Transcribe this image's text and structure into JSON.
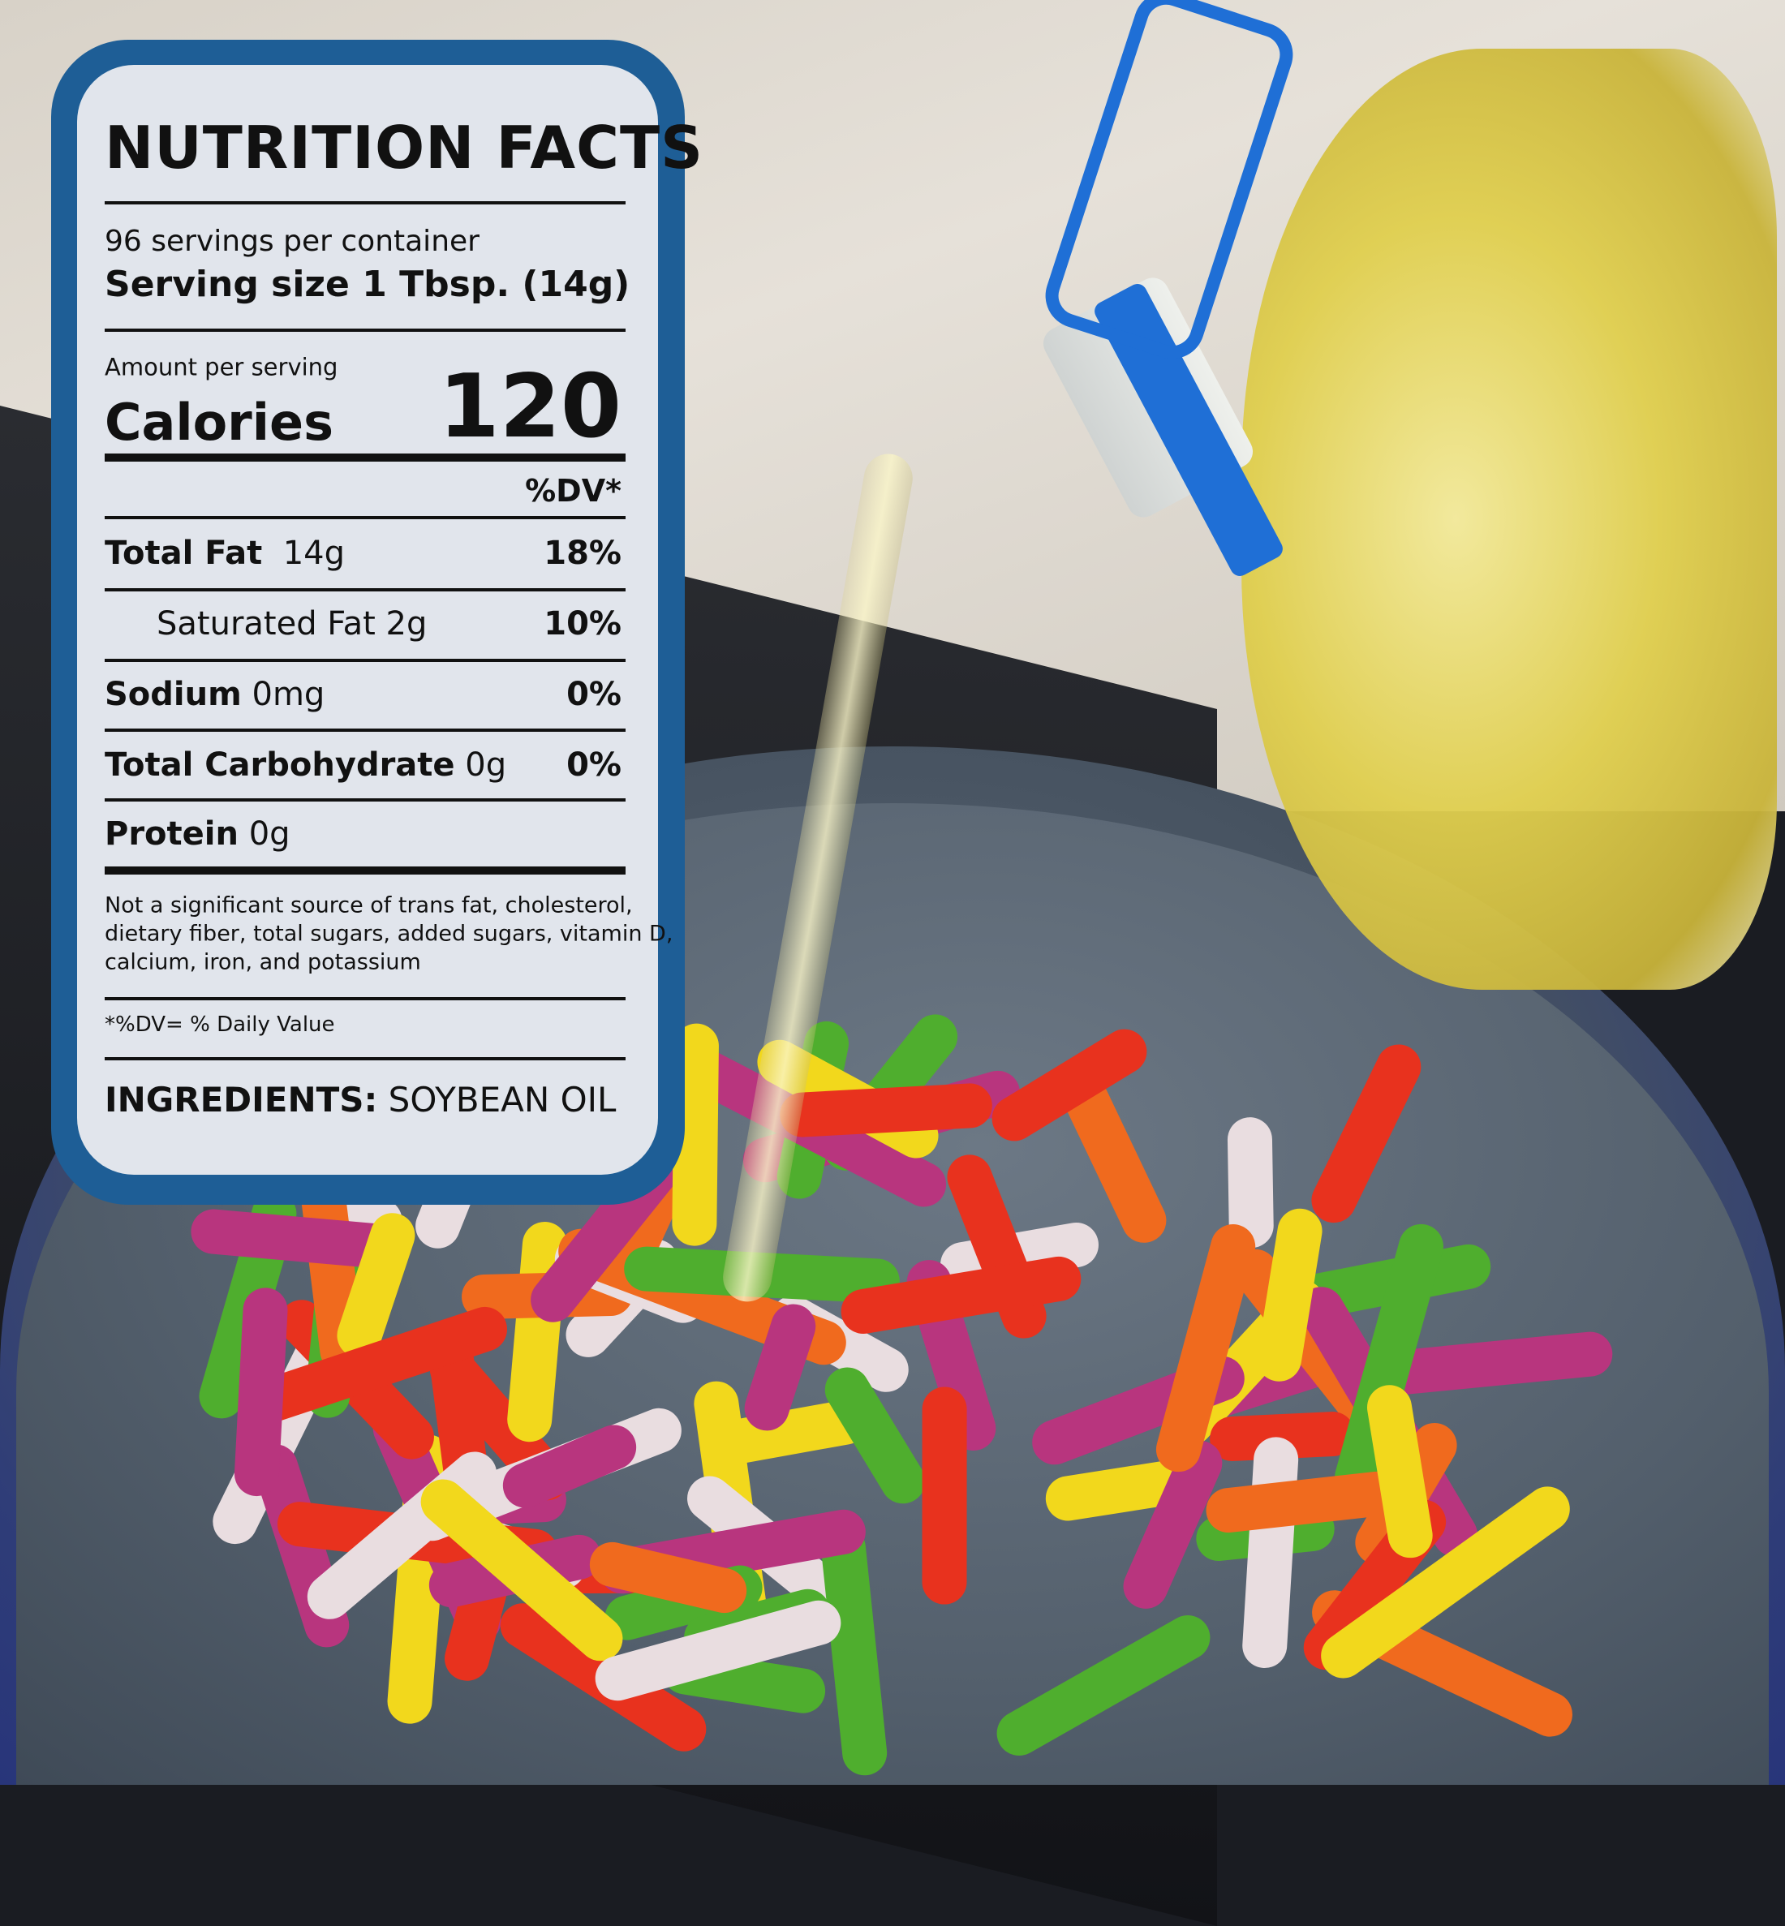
{
  "label": {
    "title": "NUTRITION FACTS",
    "servings_per_container": "96 servings per container",
    "serving_size_label": "Serving size",
    "serving_size_value": "1 Tbsp. (14g)",
    "amount_per_serving": "Amount per serving",
    "calories_label": "Calories",
    "calories_value": "120",
    "dv_header": "%DV*",
    "nutrients": [
      {
        "name": "Total Fat",
        "amount": "14g",
        "dv": "18%"
      },
      {
        "name": "Saturated Fat",
        "amount": "2g",
        "dv": "10%"
      },
      {
        "name": "Sodium",
        "amount": "0mg",
        "dv": "0%"
      },
      {
        "name": "Total Carbohydrate",
        "amount": "0g",
        "dv": "0%"
      },
      {
        "name": "Protein",
        "amount": "0g",
        "dv": ""
      }
    ],
    "footnote_lines": [
      "Not a significant source of trans fat, cholesterol,",
      "dietary fiber, total sugars, added sugars, vitamin D,",
      "calcium, iron, and potassium"
    ],
    "dv_note": "*%DV= % Daily Value",
    "ingredients_label": "INGREDIENTS:",
    "ingredients_value": "SOYBEAN OIL"
  },
  "colors": {
    "panel_border": "#1e5e96",
    "text": "#111111",
    "cap": "#1f6fd6",
    "oil": "#e0cf4e"
  }
}
